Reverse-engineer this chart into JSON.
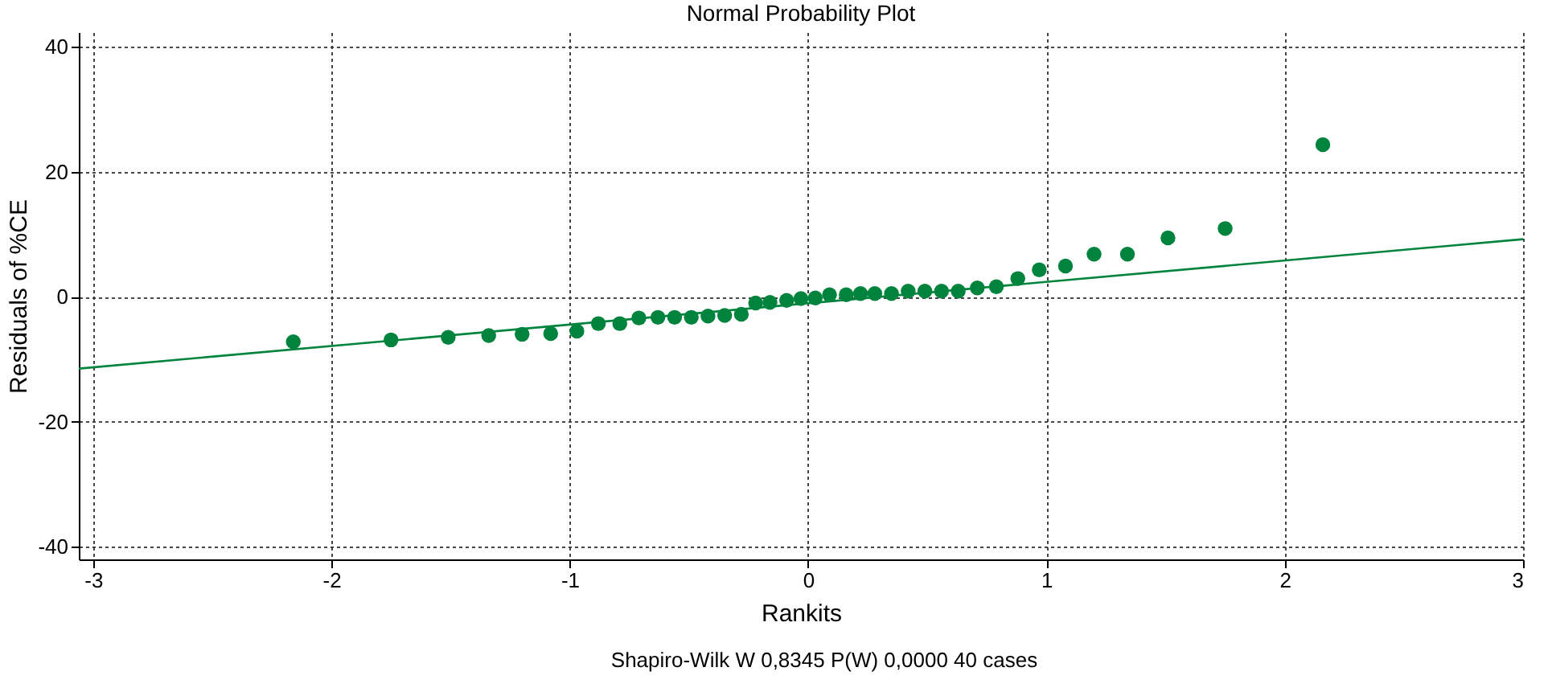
{
  "chart_data": {
    "type": "scatter",
    "title": "Normal Probability Plot",
    "xlabel": "Rankits",
    "ylabel": "Residuals of  %CE",
    "annotations": [
      "Shapiro-Wilk W 0,8345   P(W) 0,0000   40 cases"
    ],
    "xlim": [
      -3.06,
      3
    ],
    "xticks": [
      -3,
      -2,
      -1,
      0,
      1,
      2,
      3
    ],
    "ylim": [
      -42,
      42.3
    ],
    "yticks": [
      -40,
      -20,
      0,
      20,
      40
    ],
    "grid": true,
    "marker": "circle",
    "series": [
      {
        "color": "#00843d",
        "x": [
          -2.16,
          -1.75,
          -1.51,
          -1.34,
          -1.2,
          -1.08,
          -0.97,
          -0.88,
          -0.79,
          -0.71,
          -0.63,
          -0.56,
          -0.49,
          -0.42,
          -0.35,
          -0.28,
          -0.22,
          -0.16,
          -0.09,
          -0.03,
          0.03,
          0.09,
          0.16,
          0.22,
          0.28,
          0.35,
          0.42,
          0.49,
          0.56,
          0.63,
          0.71,
          0.79,
          0.88,
          0.97,
          1.08,
          1.2,
          1.34,
          1.51,
          1.75,
          2.16
        ],
        "values": [
          -7.2,
          -6.9,
          -6.5,
          -6.2,
          -6,
          -5.9,
          -5.5,
          -4.3,
          -4.3,
          -3.4,
          -3.3,
          -3.3,
          -3.3,
          -3.1,
          -3,
          -2.8,
          -1,
          -0.9,
          -0.6,
          -0.3,
          -0.2,
          0.3,
          0.3,
          0.5,
          0.5,
          0.5,
          0.9,
          0.9,
          0.9,
          0.9,
          1.4,
          1.6,
          2.9,
          4.3,
          4.9,
          6.8,
          6.8,
          9.4,
          10.9,
          24.3
        ]
      },
      {
        "type": "line",
        "marker": "none",
        "color": "#00843d",
        "x": [
          -3.06,
          3
        ],
        "values": [
          -11.5,
          9.2
        ]
      }
    ]
  }
}
